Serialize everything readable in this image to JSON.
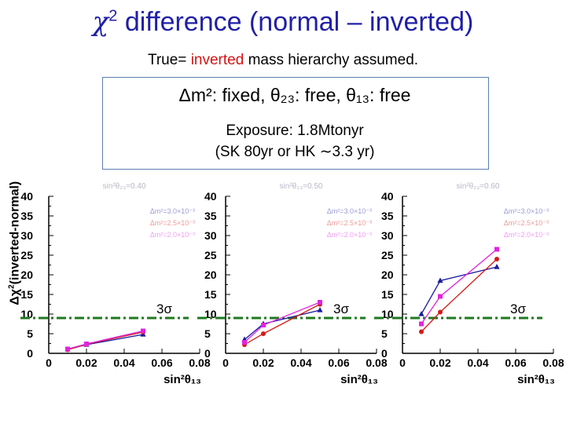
{
  "title": {
    "symbol": "χ",
    "exponent": "2",
    "text": " difference (normal – inverted)"
  },
  "subtitle": {
    "prefix": "True= ",
    "highlight": "inverted",
    "suffix": " mass hierarchy assumed."
  },
  "params": "Δm²: fixed,   θ₂₃: free,   θ₁₃: free",
  "exposure": {
    "line1": "Exposure: 1.8Mtonyr",
    "line2": "(SK 80yr or HK ∼3.3 yr)"
  },
  "y_axis_label": {
    "delta": "Δχ",
    "exponent": "2",
    "text": "(inverted-normal)"
  },
  "colors": {
    "dm2_1": "#1a1aa0",
    "dm2_2": "#d41a1a",
    "dm2_3": "#e024e0",
    "sigma_line": "#1f7a1f",
    "title": "#1f1fa8",
    "highlight": "#d21414"
  },
  "chart_data": [
    {
      "type": "line",
      "panel": "left",
      "header": "sin²θ₂₃=0.40",
      "legend": [
        "Δm²=3.0×10⁻³",
        "Δm²=2.5×10⁻³",
        "Δm²=2.0×10⁻³"
      ],
      "x": [
        0.01,
        0.02,
        0.05
      ],
      "series": [
        {
          "name": "Δm²=3.0×10⁻³",
          "color": "#1a1aa0",
          "marker": "triangle",
          "values": [
            1.0,
            2.2,
            4.8
          ]
        },
        {
          "name": "Δm²=2.5×10⁻³",
          "color": "#d41a1a",
          "marker": "circle",
          "values": [
            0.9,
            2.3,
            5.4
          ]
        },
        {
          "name": "Δm²=2.0×10⁻³",
          "color": "#e024e0",
          "marker": "square",
          "values": [
            1.1,
            2.4,
            5.7
          ]
        }
      ],
      "sigma_line": 9,
      "sigma_label": "3σ",
      "xlim": [
        0,
        0.08
      ],
      "ylim": [
        0,
        40
      ],
      "xticks": [
        "0",
        "0.02",
        "0.04",
        "0.06",
        "0.08"
      ],
      "yticks": [
        "0",
        "5",
        "10",
        "15",
        "20",
        "25",
        "30",
        "35",
        "40"
      ],
      "xlabel": "sin²θ₁₃",
      "ylabel": "Δχ²(inverted-normal)"
    },
    {
      "type": "line",
      "panel": "middle",
      "header": "sin²θ₂₃=0.50",
      "legend": [
        "Δm²=3.0×10⁻³",
        "Δm²=2.5×10⁻³",
        "Δm²=2.0×10⁻³"
      ],
      "x": [
        0.01,
        0.02,
        0.05
      ],
      "series": [
        {
          "name": "Δm²=3.0×10⁻³",
          "color": "#1a1aa0",
          "marker": "triangle",
          "values": [
            3.5,
            7.5,
            11.0
          ]
        },
        {
          "name": "Δm²=2.5×10⁻³",
          "color": "#d41a1a",
          "marker": "circle",
          "values": [
            2.2,
            5.0,
            12.5
          ]
        },
        {
          "name": "Δm²=2.0×10⁻³",
          "color": "#e024e0",
          "marker": "square",
          "values": [
            2.8,
            7.2,
            13.0
          ]
        }
      ],
      "sigma_line": 9,
      "sigma_label": "3σ",
      "xlim": [
        0,
        0.08
      ],
      "ylim": [
        0,
        40
      ],
      "xticks": [
        "0",
        "0.02",
        "0.04",
        "0.06",
        "0.08"
      ],
      "yticks": [
        "0",
        "5",
        "10",
        "15",
        "20",
        "25",
        "30",
        "35",
        "40"
      ],
      "xlabel": "sin²θ₁₃"
    },
    {
      "type": "line",
      "panel": "right",
      "header": "sin²θ₂₃=0.60",
      "legend": [
        "Δm²=3.0×10⁻³",
        "Δm²=2.5×10⁻³",
        "Δm²=2.0×10⁻³"
      ],
      "x": [
        0.01,
        0.02,
        0.05
      ],
      "series": [
        {
          "name": "Δm²=3.0×10⁻³",
          "color": "#1a1aa0",
          "marker": "triangle",
          "values": [
            10.0,
            18.5,
            22.0
          ]
        },
        {
          "name": "Δm²=2.5×10⁻³",
          "color": "#d41a1a",
          "marker": "circle",
          "values": [
            5.5,
            10.5,
            24.0
          ]
        },
        {
          "name": "Δm²=2.0×10⁻³",
          "color": "#e024e0",
          "marker": "square",
          "values": [
            7.5,
            14.5,
            26.5
          ]
        }
      ],
      "sigma_line": 9,
      "sigma_label": "3σ",
      "xlim": [
        0,
        0.08
      ],
      "ylim": [
        0,
        40
      ],
      "xticks": [
        "0",
        "0.02",
        "0.04",
        "0.06",
        "0.08"
      ],
      "yticks": [
        "0",
        "5",
        "10",
        "15",
        "20",
        "25",
        "30",
        "35",
        "40"
      ],
      "xlabel": "sin²θ₁₃"
    }
  ]
}
